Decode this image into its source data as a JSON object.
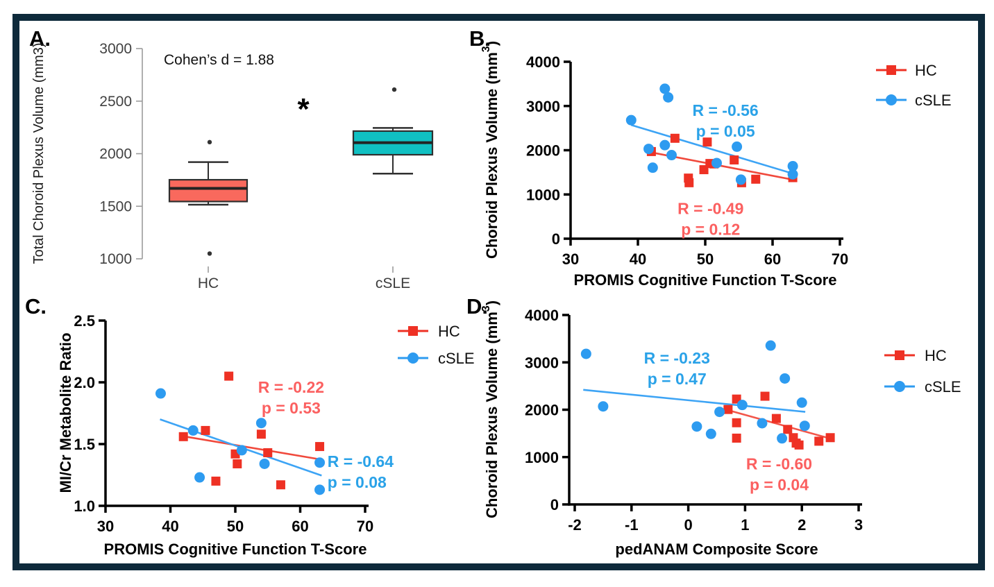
{
  "figure": {
    "border_color": "#0e2a3b",
    "background": "#ffffff"
  },
  "chart_data": [
    {
      "id": "A",
      "type": "box",
      "panel_label": "A.",
      "annotation": "Cohen’s d = 1.88",
      "significance": "*",
      "ylabel": "Total Choroid Plexus Volume (mm3)",
      "ylim": [
        1000,
        3000
      ],
      "yticks": {
        "values": [
          1000,
          1500,
          2000,
          2500,
          3000
        ],
        "labels": [
          "1000",
          "1500",
          "2000",
          "2500",
          "3000"
        ]
      },
      "categories": [
        {
          "name": "HC",
          "whisker_low": 1515,
          "q1": 1545,
          "median": 1670,
          "q3": 1752,
          "whisker_high": 1920,
          "outliers": [
            2110,
            1050
          ],
          "fill": "#f9695d"
        },
        {
          "name": "cSLE",
          "whisker_low": 1810,
          "q1": 1990,
          "median": 2105,
          "q3": 2215,
          "whisker_high": 2245,
          "outliers": [
            2610
          ],
          "fill": "#10c0c2"
        }
      ]
    },
    {
      "id": "B",
      "type": "scatter",
      "panel_label": "B.",
      "xlabel": "PROMIS Cognitive Function T-Score",
      "ylabel_parts": [
        "Choroid Plexus Volume (mm",
        "3",
        ")"
      ],
      "xlim": [
        30,
        70
      ],
      "ylim": [
        0,
        4000
      ],
      "xticks": {
        "values": [
          30,
          40,
          50,
          60,
          70
        ],
        "labels": [
          "30",
          "40",
          "50",
          "60",
          "70"
        ]
      },
      "yticks": {
        "values": [
          0,
          1000,
          2000,
          3000,
          4000
        ],
        "labels": [
          "0",
          "1000",
          "2000",
          "3000",
          "4000"
        ]
      },
      "series": [
        {
          "key": "hc",
          "name": "HC",
          "marker": "square",
          "color": "#ee3124",
          "trend_color": "#f0493c",
          "points": [
            [
              42,
              1970
            ],
            [
              45.5,
              2270
            ],
            [
              47.5,
              1370
            ],
            [
              47.6,
              1265
            ],
            [
              49.8,
              1560
            ],
            [
              50.3,
              2185
            ],
            [
              50.7,
              1700
            ],
            [
              51.3,
              1690
            ],
            [
              54.3,
              1780
            ],
            [
              55.4,
              1265
            ],
            [
              57.5,
              1345
            ],
            [
              63,
              1380
            ]
          ],
          "trend": [
            [
              42,
              1950
            ],
            [
              63.5,
              1320
            ]
          ]
        },
        {
          "key": "csle",
          "name": "cSLE",
          "marker": "circle",
          "color": "#2d9bf0",
          "trend_color": "#3da4f5",
          "points": [
            [
              39,
              2680
            ],
            [
              41.6,
              2030
            ],
            [
              42.2,
              1605
            ],
            [
              44,
              2115
            ],
            [
              44,
              3390
            ],
            [
              44.5,
              3195
            ],
            [
              45,
              1890
            ],
            [
              51.7,
              1710
            ],
            [
              54.7,
              2080
            ],
            [
              55.3,
              1335
            ],
            [
              63,
              1640
            ],
            [
              63,
              1455
            ]
          ],
          "trend": [
            [
              39,
              2570
            ],
            [
              63.5,
              1450
            ]
          ]
        }
      ],
      "annotations": [
        {
          "lines": [
            "R = -0.56",
            "p = 0.05"
          ],
          "x": 53,
          "y": 2900,
          "anchor": "middle",
          "color": "#2aa2e8"
        },
        {
          "lines": [
            "R = -0.49",
            "p = 0.12"
          ],
          "x": 50.8,
          "y": 680,
          "anchor": "middle",
          "color": "#fb6060"
        }
      ],
      "legend": {
        "items": [
          {
            "series": "hc",
            "label": "HC"
          },
          {
            "series": "csle",
            "label": "cSLE"
          }
        ]
      }
    },
    {
      "id": "C",
      "type": "scatter",
      "panel_label": "C.",
      "xlabel": "PROMIS Cognitive Function T-Score",
      "ylabel": "MI/Cr Metabolite Ratio",
      "xlim": [
        30,
        70
      ],
      "ylim": [
        1.0,
        2.5
      ],
      "xticks": {
        "values": [
          30,
          40,
          50,
          60,
          70
        ],
        "labels": [
          "30",
          "40",
          "50",
          "60",
          "70"
        ]
      },
      "yticks": {
        "values": [
          1.0,
          1.5,
          2.0,
          2.5
        ],
        "labels": [
          "1.0",
          "1.5",
          "2.0",
          "2.5"
        ]
      },
      "series": [
        {
          "key": "hc",
          "name": "HC",
          "marker": "square",
          "color": "#ee3124",
          "trend_color": "#f0493c",
          "points": [
            [
              42,
              1.56
            ],
            [
              45.4,
              1.61
            ],
            [
              47,
              1.2
            ],
            [
              49,
              2.05
            ],
            [
              50,
              1.42
            ],
            [
              50.3,
              1.34
            ],
            [
              54,
              1.58
            ],
            [
              55,
              1.43
            ],
            [
              57,
              1.17
            ],
            [
              63,
              1.48
            ]
          ],
          "trend": [
            [
              41.8,
              1.565
            ],
            [
              63.2,
              1.375
            ]
          ]
        },
        {
          "key": "csle",
          "name": "cSLE",
          "marker": "circle",
          "color": "#2d9bf0",
          "trend_color": "#3da4f5",
          "points": [
            [
              38.5,
              1.91
            ],
            [
              43.5,
              1.61
            ],
            [
              44.5,
              1.23
            ],
            [
              51,
              1.45
            ],
            [
              54,
              1.67
            ],
            [
              54.5,
              1.34
            ],
            [
              63,
              1.35
            ],
            [
              63,
              1.13
            ]
          ],
          "trend": [
            [
              38.4,
              1.7
            ],
            [
              63.3,
              1.245
            ]
          ]
        }
      ],
      "annotations": [
        {
          "lines": [
            "R = -0.22",
            "p = 0.53"
          ],
          "x": 58.6,
          "y": 1.96,
          "anchor": "middle",
          "color": "#fb6060"
        },
        {
          "lines": [
            "R = -0.64",
            "p = 0.08"
          ],
          "x": 64.2,
          "y": 1.36,
          "anchor": "start",
          "color": "#2aa2e8"
        }
      ],
      "legend": {
        "items": [
          {
            "series": "hc",
            "label": "HC"
          },
          {
            "series": "csle",
            "label": "cSLE"
          }
        ]
      }
    },
    {
      "id": "D",
      "type": "scatter",
      "panel_label": "D.",
      "xlabel": "pedANAM Composite Score",
      "ylabel_parts": [
        "Choroid Plexus Volume (mm",
        "3",
        ")"
      ],
      "xlim": [
        -2,
        3
      ],
      "ylim": [
        0,
        4000
      ],
      "xticks": {
        "values": [
          -2,
          -1,
          0,
          1,
          2,
          3
        ],
        "labels": [
          "-2",
          "-1",
          "0",
          "1",
          "2",
          "3"
        ]
      },
      "yticks": {
        "values": [
          0,
          1000,
          2000,
          3000,
          4000
        ],
        "labels": [
          "0",
          "1000",
          "2000",
          "3000",
          "4000"
        ]
      },
      "series": [
        {
          "key": "hc",
          "name": "HC",
          "marker": "square",
          "color": "#ee3124",
          "trend_color": "#f2564a",
          "points": [
            [
              0.7,
              2005
            ],
            [
              0.85,
              2225
            ],
            [
              0.85,
              1725
            ],
            [
              0.85,
              1400
            ],
            [
              1.35,
              2285
            ],
            [
              1.55,
              1815
            ],
            [
              1.75,
              1585
            ],
            [
              1.85,
              1410
            ],
            [
              1.9,
              1295
            ],
            [
              1.95,
              1255
            ],
            [
              2.3,
              1335
            ],
            [
              2.5,
              1410
            ]
          ],
          "trend": [
            [
              0.7,
              1990
            ],
            [
              2.52,
              1385
            ]
          ]
        },
        {
          "key": "csle",
          "name": "cSLE",
          "marker": "circle",
          "color": "#2d9bf0",
          "trend_color": "#3da4f5",
          "points": [
            [
              -1.8,
              3180
            ],
            [
              -1.5,
              2070
            ],
            [
              0.15,
              1645
            ],
            [
              0.4,
              1490
            ],
            [
              0.55,
              1955
            ],
            [
              0.95,
              2100
            ],
            [
              1.3,
              1715
            ],
            [
              1.45,
              3355
            ],
            [
              1.65,
              1395
            ],
            [
              1.7,
              2660
            ],
            [
              2.0,
              2150
            ],
            [
              2.05,
              1660
            ]
          ],
          "trend": [
            [
              -1.85,
              2420
            ],
            [
              2.06,
              1955
            ]
          ]
        }
      ],
      "annotations": [
        {
          "lines": [
            "R = -0.23",
            "p = 0.47"
          ],
          "x": -0.2,
          "y": 3090,
          "anchor": "middle",
          "color": "#2aa2e8"
        },
        {
          "lines": [
            "R = -0.60",
            "p = 0.04"
          ],
          "x": 1.6,
          "y": 855,
          "anchor": "middle",
          "color": "#fb6060"
        }
      ],
      "legend": {
        "items": [
          {
            "series": "hc",
            "label": "HC"
          },
          {
            "series": "csle",
            "label": "cSLE"
          }
        ]
      }
    }
  ]
}
